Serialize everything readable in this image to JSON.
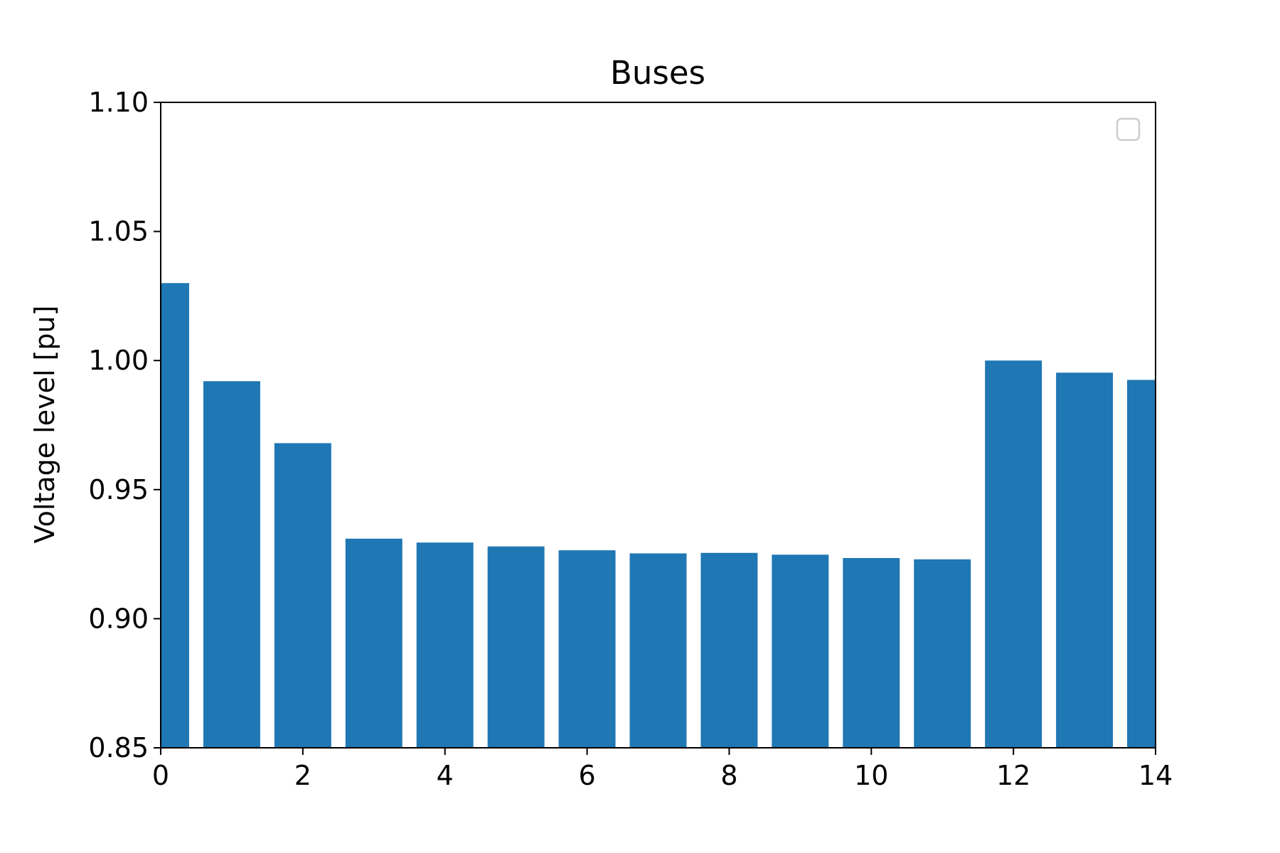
{
  "chart_data": {
    "type": "bar",
    "title": "Buses",
    "xlabel": "",
    "ylabel": "Voltage level [pu]",
    "categories": [
      0,
      1,
      2,
      3,
      4,
      5,
      6,
      7,
      8,
      9,
      10,
      11,
      12,
      13,
      14
    ],
    "values": [
      1.03,
      0.992,
      0.968,
      0.931,
      0.9295,
      0.928,
      0.9265,
      0.9253,
      0.9255,
      0.9248,
      0.9235,
      0.923,
      1.0,
      0.9953,
      0.9925
    ],
    "bar_color": "#1f77b4",
    "xlim": [
      0,
      14
    ],
    "ylim": [
      0.85,
      1.1
    ],
    "xticks": [
      "0",
      "2",
      "4",
      "6",
      "8",
      "10",
      "12",
      "14"
    ],
    "yticks": [
      "0.85",
      "0.90",
      "0.95",
      "1.00",
      "1.05",
      "1.10"
    ],
    "legend": "upper right, empty",
    "grid": false
  }
}
